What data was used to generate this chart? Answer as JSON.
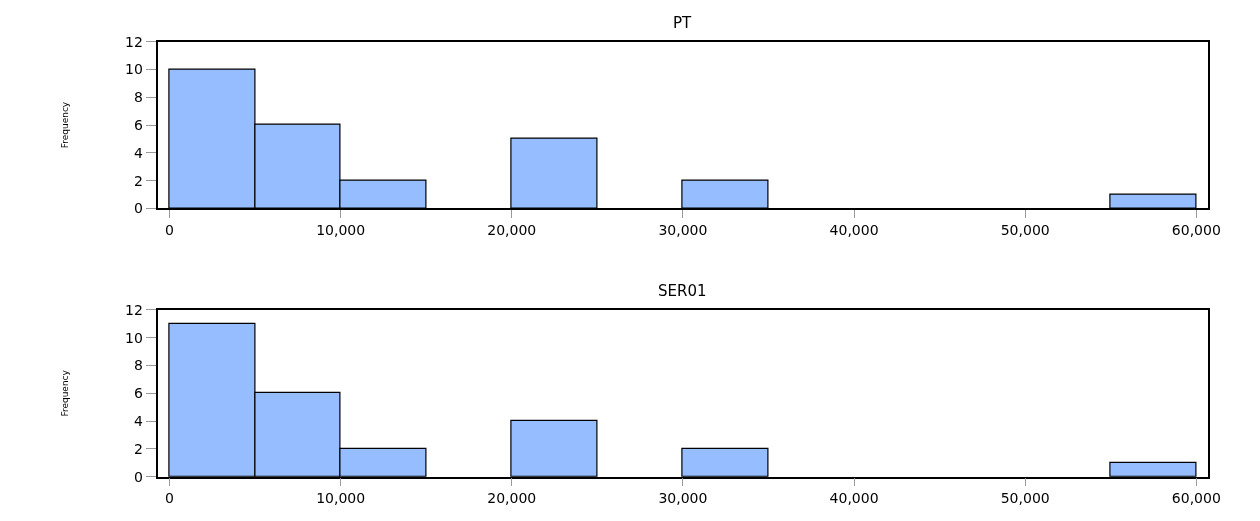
{
  "chart_data": [
    {
      "type": "histogram",
      "title": "PT",
      "ylabel": "Frequency",
      "bins": [
        0,
        5000,
        10000,
        15000,
        20000,
        25000,
        30000,
        35000,
        40000,
        45000,
        50000,
        55000,
        60000
      ],
      "values": [
        10,
        6,
        2,
        0,
        5,
        0,
        2,
        0,
        0,
        0,
        0,
        1
      ],
      "color": "#95bdff",
      "xlim": [
        -700,
        60700
      ],
      "ylim": [
        0,
        12
      ],
      "xticks": [
        0,
        {
          "value": 10000,
          "label": "10,000"
        },
        {
          "value": 20000,
          "label": "20,000"
        },
        {
          "value": 30000,
          "label": "30,000"
        },
        {
          "value": 40000,
          "label": "40,000"
        },
        {
          "value": 50000,
          "label": "50,000"
        },
        {
          "value": 60000,
          "label": "60,000"
        }
      ],
      "yticks": [
        0,
        2,
        4,
        6,
        8,
        10,
        12
      ]
    },
    {
      "type": "histogram",
      "title": "SER01",
      "ylabel": "Frequency",
      "bins": [
        0,
        5000,
        10000,
        15000,
        20000,
        25000,
        30000,
        35000,
        40000,
        45000,
        50000,
        55000,
        60000
      ],
      "values": [
        11,
        6,
        2,
        0,
        4,
        0,
        2,
        0,
        0,
        0,
        0,
        1
      ],
      "color": "#95bdff",
      "xlim": [
        -700,
        60700
      ],
      "ylim": [
        0,
        12
      ],
      "xticks": [
        0,
        {
          "value": 10000,
          "label": "10,000"
        },
        {
          "value": 20000,
          "label": "20,000"
        },
        {
          "value": 30000,
          "label": "30,000"
        },
        {
          "value": 40000,
          "label": "40,000"
        },
        {
          "value": 50000,
          "label": "50,000"
        },
        {
          "value": 60000,
          "label": "60,000"
        }
      ],
      "yticks": [
        0,
        2,
        4,
        6,
        8,
        10,
        12
      ]
    }
  ]
}
